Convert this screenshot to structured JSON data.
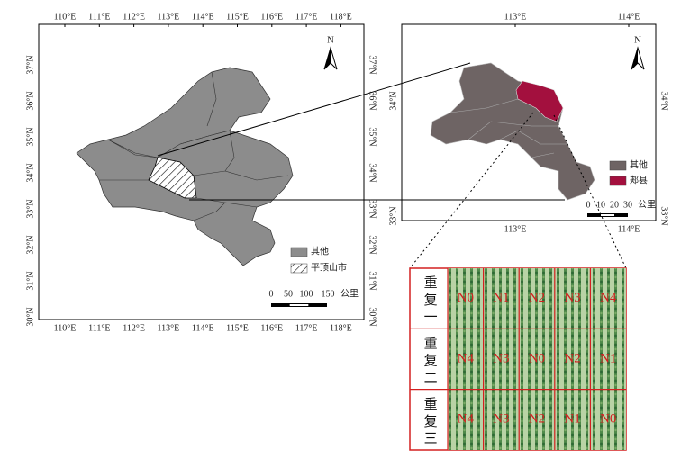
{
  "left_map": {
    "lon_labels": [
      "110°E",
      "111°E",
      "112°E",
      "113°E",
      "114°E",
      "115°E",
      "116°E",
      "117°E",
      "118°E"
    ],
    "lat_labels": [
      "30°N",
      "31°N",
      "32°N",
      "33°N",
      "34°N",
      "35°N",
      "36°N",
      "37°N"
    ],
    "north": "N",
    "legend": [
      "其他",
      "平顶山市"
    ],
    "scale": {
      "ticks": [
        "0",
        "50",
        "100",
        "150"
      ],
      "unit": "公里"
    }
  },
  "right_map": {
    "lon_labels": [
      "113°E",
      "114°E"
    ],
    "lat_labels": [
      "33°N",
      "34°N"
    ],
    "north": "N",
    "legend": [
      "其他",
      "郏县"
    ],
    "scale": {
      "ticks": [
        "0",
        "10",
        "20",
        "30"
      ],
      "unit": "公里"
    }
  },
  "field": {
    "row_labels": [
      "重复一",
      "重复二",
      "重复三"
    ],
    "plots": [
      [
        "N0",
        "N1",
        "N2",
        "N3",
        "N4"
      ],
      [
        "N4",
        "N3",
        "N0",
        "N2",
        "N1"
      ],
      [
        "N4",
        "N3",
        "N2",
        "N1",
        "N0"
      ]
    ]
  }
}
